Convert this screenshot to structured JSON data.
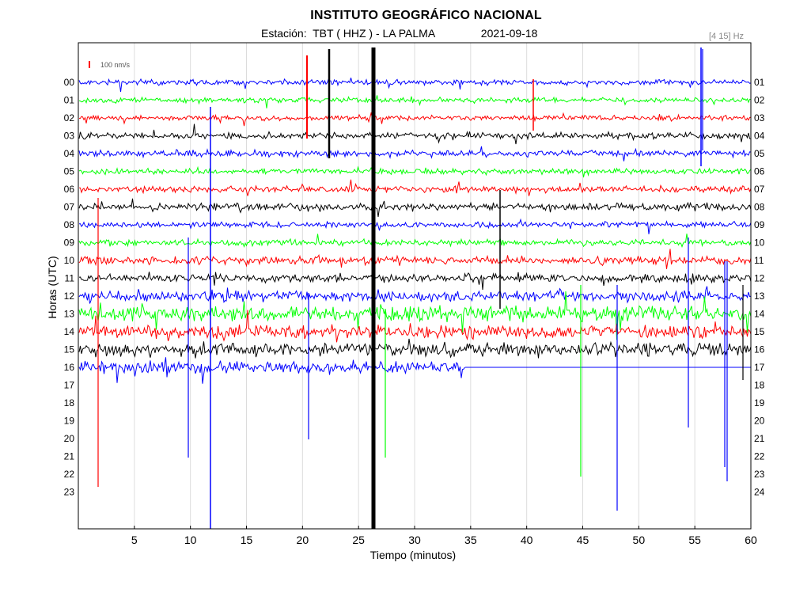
{
  "chart_data": {
    "type": "line",
    "title": "INSTITUTO GEOGRÁFICO NACIONAL",
    "station_label": "Estación:",
    "station": "TBT ( HHZ ) - LA PALMA",
    "date": "2021-09-18",
    "band": "[4 15] Hz",
    "scale_label": "100 nm/s",
    "xlabel": "Tiempo (minutos)",
    "ylabel": "Horas (UTC)",
    "xlim": [
      0,
      60
    ],
    "xticks": [
      "5",
      "10",
      "15",
      "20",
      "25",
      "30",
      "35",
      "40",
      "45",
      "50",
      "55",
      "60"
    ],
    "left_hour_labels": [
      "00",
      "01",
      "02",
      "03",
      "04",
      "05",
      "06",
      "07",
      "08",
      "09",
      "10",
      "11",
      "12",
      "13",
      "14",
      "15",
      "16",
      "17",
      "18",
      "19",
      "20",
      "21",
      "22",
      "23"
    ],
    "right_hour_labels": [
      "01",
      "02",
      "03",
      "04",
      "05",
      "06",
      "07",
      "08",
      "09",
      "10",
      "11",
      "12",
      "13",
      "14",
      "15",
      "16",
      "17",
      "18",
      "19",
      "20",
      "21",
      "22",
      "23",
      "24"
    ],
    "trace_colors": [
      "#0000ff",
      "#00ff00",
      "#ff0000",
      "#000000"
    ],
    "traces": [
      {
        "hour": "00",
        "end_minute": 60,
        "amplitude": 1.0
      },
      {
        "hour": "01",
        "end_minute": 60,
        "amplitude": 1.0
      },
      {
        "hour": "02",
        "end_minute": 60,
        "amplitude": 1.0
      },
      {
        "hour": "03",
        "end_minute": 60,
        "amplitude": 1.3
      },
      {
        "hour": "04",
        "end_minute": 60,
        "amplitude": 1.2
      },
      {
        "hour": "05",
        "end_minute": 60,
        "amplitude": 1.1
      },
      {
        "hour": "06",
        "end_minute": 60,
        "amplitude": 1.2
      },
      {
        "hour": "07",
        "end_minute": 60,
        "amplitude": 1.4
      },
      {
        "hour": "08",
        "end_minute": 60,
        "amplitude": 1.1
      },
      {
        "hour": "09",
        "end_minute": 60,
        "amplitude": 1.2
      },
      {
        "hour": "10",
        "end_minute": 60,
        "amplitude": 1.5
      },
      {
        "hour": "11",
        "end_minute": 60,
        "amplitude": 1.6
      },
      {
        "hour": "12",
        "end_minute": 60,
        "amplitude": 2.0
      },
      {
        "hour": "13",
        "end_minute": 60,
        "amplitude": 2.8
      },
      {
        "hour": "14",
        "end_minute": 60,
        "amplitude": 2.6
      },
      {
        "hour": "15",
        "end_minute": 60,
        "amplitude": 2.6
      },
      {
        "hour": "16",
        "end_minute": 34.5,
        "amplitude": 2.2
      }
    ],
    "grid": "vertical",
    "legend": "none"
  }
}
